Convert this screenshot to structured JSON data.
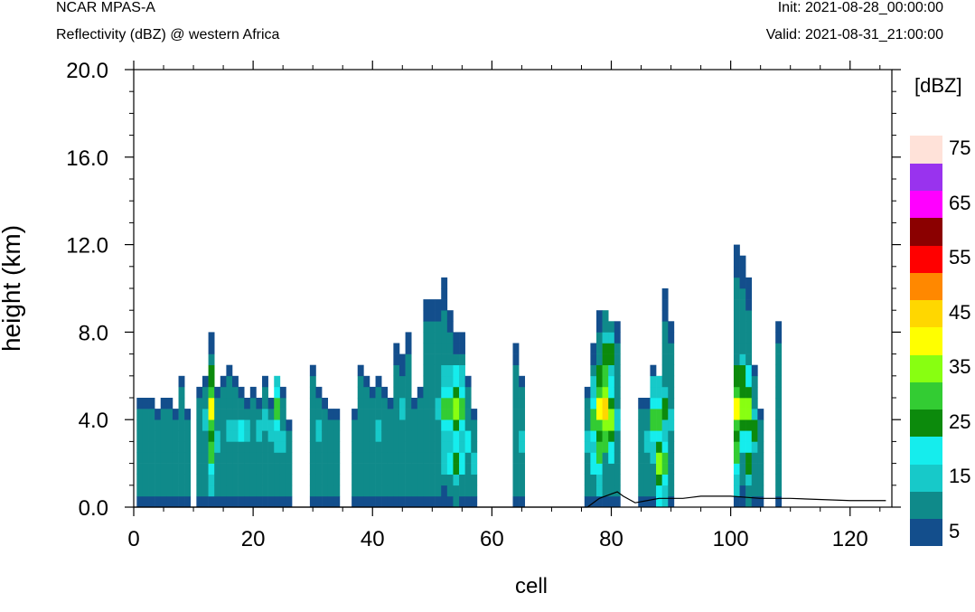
{
  "header": {
    "model": "NCAR MPAS-A",
    "subtitle": "Reflectivity (dBZ) @ western Africa",
    "init": "Init: 2021-08-28_00:00:00",
    "valid": "Valid: 2021-08-31_21:00:00"
  },
  "chart_data": {
    "type": "heatmap",
    "title": "Reflectivity (dBZ) @ western Africa",
    "xlabel": "cell",
    "ylabel": "height (km)",
    "xlim": [
      0,
      127
    ],
    "ylim": [
      0,
      20
    ],
    "x_ticks": [
      0,
      20,
      40,
      60,
      80,
      100,
      120
    ],
    "y_ticks": [
      0,
      4,
      8,
      12,
      16,
      20
    ],
    "x_tick_labels": [
      "0",
      "20",
      "40",
      "60",
      "80",
      "100",
      "120"
    ],
    "y_tick_labels": [
      "0.0",
      "4.0",
      "8.0",
      "12.0",
      "16.0",
      "20.0"
    ],
    "colorbar": {
      "unit": "[dBZ]",
      "levels": [
        5,
        10,
        15,
        20,
        25,
        30,
        35,
        40,
        45,
        50,
        55,
        60,
        65,
        70,
        75
      ],
      "colors": [
        "#134e8c",
        "#0f8a8a",
        "#17c9c9",
        "#15eded",
        "#0c8a0c",
        "#33cc33",
        "#88ff11",
        "#ffff00",
        "#ffd700",
        "#ff8800",
        "#ff0000",
        "#8b0000",
        "#ff00ff",
        "#9933ee",
        "#ffe2d9"
      ],
      "tick_labels": [
        "5",
        "15",
        "25",
        "35",
        "45",
        "55",
        "65",
        "75"
      ]
    },
    "columns": [
      {
        "x": 1,
        "top": 5.0,
        "cores": []
      },
      {
        "x": 2,
        "top": 5.0,
        "cores": [
          {
            "z": 2.5,
            "dbz": 10
          }
        ]
      },
      {
        "x": 3,
        "top": 5.0,
        "cores": []
      },
      {
        "x": 4,
        "top": 4.5,
        "cores": []
      },
      {
        "x": 5,
        "top": 5.0,
        "cores": [
          {
            "z": 3,
            "dbz": 10
          }
        ]
      },
      {
        "x": 6,
        "top": 5.0,
        "cores": []
      },
      {
        "x": 7,
        "top": 4.5,
        "cores": [
          {
            "z": 3,
            "dbz": 10
          }
        ]
      },
      {
        "x": 8,
        "top": 6.0,
        "cores": []
      },
      {
        "x": 9,
        "top": 4.5,
        "cores": []
      },
      {
        "x": 11,
        "top": 5.5,
        "cores": [
          {
            "z": 3,
            "dbz": 10
          }
        ]
      },
      {
        "x": 12,
        "top": 6.0,
        "cores": [
          {
            "z": 4,
            "dbz": 15
          }
        ]
      },
      {
        "x": 13,
        "top": 8.0,
        "cores": [
          {
            "z": 4.5,
            "dbz": 40
          },
          {
            "z": 2.5,
            "dbz": 30
          }
        ]
      },
      {
        "x": 14,
        "top": 5.5,
        "cores": [
          {
            "z": 3,
            "dbz": 15
          }
        ]
      },
      {
        "x": 15,
        "top": 6.0,
        "cores": [
          {
            "z": 3,
            "dbz": 10
          }
        ]
      },
      {
        "x": 16,
        "top": 6.5,
        "cores": [
          {
            "z": 3.5,
            "dbz": 15
          }
        ]
      },
      {
        "x": 17,
        "top": 6.0,
        "cores": [
          {
            "z": 3.5,
            "dbz": 15
          }
        ]
      },
      {
        "x": 18,
        "top": 5.5,
        "cores": [
          {
            "z": 3.5,
            "dbz": 20
          }
        ]
      },
      {
        "x": 19,
        "top": 5.0,
        "cores": [
          {
            "z": 3.5,
            "dbz": 15
          }
        ]
      },
      {
        "x": 20,
        "top": 5.5,
        "cores": [
          {
            "z": 3,
            "dbz": 10
          }
        ]
      },
      {
        "x": 21,
        "top": 5.0,
        "cores": [
          {
            "z": 3.5,
            "dbz": 15
          }
        ]
      },
      {
        "x": 22,
        "top": 6.0,
        "cores": [
          {
            "z": 4,
            "dbz": 15
          }
        ]
      },
      {
        "x": 23,
        "top": 5.0,
        "cores": [
          {
            "z": 3.5,
            "dbz": 15
          }
        ]
      },
      {
        "x": 24,
        "top": 6.0,
        "cores": [
          {
            "z": 4.5,
            "dbz": 30
          }
        ]
      },
      {
        "x": 25,
        "top": 5.5,
        "cores": [
          {
            "z": 3,
            "dbz": 15
          }
        ]
      },
      {
        "x": 26,
        "top": 4.0,
        "cores": [
          {
            "z": 2.5,
            "dbz": 10
          }
        ]
      },
      {
        "x": 30,
        "top": 6.5,
        "cores": [
          {
            "z": 3,
            "dbz": 10
          }
        ]
      },
      {
        "x": 31,
        "top": 5.5,
        "cores": [
          {
            "z": 3.5,
            "dbz": 15
          }
        ]
      },
      {
        "x": 32,
        "top": 5.0,
        "cores": [
          {
            "z": 3,
            "dbz": 10
          }
        ]
      },
      {
        "x": 33,
        "top": 4.5,
        "cores": []
      },
      {
        "x": 34,
        "top": 4.5,
        "cores": []
      },
      {
        "x": 37,
        "top": 4.5,
        "cores": [
          {
            "z": 2.5,
            "dbz": 10
          }
        ]
      },
      {
        "x": 38,
        "top": 6.5,
        "cores": [
          {
            "z": 3.5,
            "dbz": 10
          }
        ]
      },
      {
        "x": 39,
        "top": 6.0,
        "cores": [
          {
            "z": 3.5,
            "dbz": 10
          }
        ]
      },
      {
        "x": 40,
        "top": 5.5,
        "cores": [
          {
            "z": 3.5,
            "dbz": 10
          }
        ]
      },
      {
        "x": 41,
        "top": 6.0,
        "cores": [
          {
            "z": 3.5,
            "dbz": 15
          }
        ]
      },
      {
        "x": 42,
        "top": 5.5,
        "cores": [
          {
            "z": 3.5,
            "dbz": 10
          }
        ]
      },
      {
        "x": 43,
        "top": 5.0,
        "cores": [
          {
            "z": 3,
            "dbz": 10
          }
        ]
      },
      {
        "x": 44,
        "top": 7.5,
        "cores": [
          {
            "z": 4,
            "dbz": 10
          }
        ]
      },
      {
        "x": 45,
        "top": 7.0,
        "cores": [
          {
            "z": 4.5,
            "dbz": 15
          }
        ]
      },
      {
        "x": 46,
        "top": 8.0,
        "cores": [
          {
            "z": 3.5,
            "dbz": 10
          }
        ]
      },
      {
        "x": 47,
        "top": 5.0,
        "cores": [
          {
            "z": 3,
            "dbz": 10
          }
        ]
      },
      {
        "x": 48,
        "top": 5.5,
        "cores": [
          {
            "z": 3,
            "dbz": 10
          }
        ]
      },
      {
        "x": 49,
        "top": 9.5,
        "cores": [
          {
            "z": 4,
            "dbz": 10
          }
        ]
      },
      {
        "x": 50,
        "top": 9.5,
        "cores": [
          {
            "z": 4,
            "dbz": 10
          }
        ]
      },
      {
        "x": 51,
        "top": 9.5,
        "cores": [
          {
            "z": 4.5,
            "dbz": 15
          }
        ]
      },
      {
        "x": 52,
        "top": 10.5,
        "cores": [
          {
            "z": 4.5,
            "dbz": 30
          },
          {
            "z": 2,
            "dbz": 15
          }
        ]
      },
      {
        "x": 53,
        "top": 9.0,
        "cores": [
          {
            "z": 4.5,
            "dbz": 30
          },
          {
            "z": 2,
            "dbz": 20
          }
        ]
      },
      {
        "x": 54,
        "top": 8.0,
        "cores": [
          {
            "z": 4.5,
            "dbz": 35
          },
          {
            "z": 2,
            "dbz": 25
          }
        ]
      },
      {
        "x": 55,
        "top": 8.0,
        "cores": [
          {
            "z": 4.5,
            "dbz": 30
          },
          {
            "z": 2,
            "dbz": 20
          }
        ]
      },
      {
        "x": 56,
        "top": 6.0,
        "cores": [
          {
            "z": 3,
            "dbz": 20
          }
        ]
      },
      {
        "x": 57,
        "top": 4.5,
        "cores": [
          {
            "z": 2,
            "dbz": 15
          }
        ]
      },
      {
        "x": 64,
        "top": 7.5,
        "cores": [
          {
            "z": 4.5,
            "dbz": 10
          }
        ]
      },
      {
        "x": 65,
        "top": 6.0,
        "cores": [
          {
            "z": 3,
            "dbz": 15
          }
        ]
      },
      {
        "x": 76,
        "top": 5.5,
        "cores": [
          {
            "z": 3,
            "dbz": 15
          }
        ]
      },
      {
        "x": 77,
        "top": 7.5,
        "cores": [
          {
            "z": 4,
            "dbz": 30
          },
          {
            "z": 2,
            "dbz": 20
          }
        ]
      },
      {
        "x": 78,
        "top": 9.0,
        "cores": [
          {
            "z": 4.5,
            "dbz": 40
          },
          {
            "z": 2.5,
            "dbz": 30
          }
        ]
      },
      {
        "x": 79,
        "top": 9.0,
        "cores": [
          {
            "z": 4.5,
            "dbz": 45
          },
          {
            "z": 7,
            "dbz": 25
          }
        ]
      },
      {
        "x": 80,
        "top": 8.5,
        "cores": [
          {
            "z": 4,
            "dbz": 35
          },
          {
            "z": 7,
            "dbz": 25
          }
        ]
      },
      {
        "x": 81,
        "top": 8.5,
        "cores": [
          {
            "z": 4,
            "dbz": 15
          }
        ]
      },
      {
        "x": 85,
        "top": 5.0,
        "cores": [
          {
            "z": 3,
            "dbz": 10
          }
        ]
      },
      {
        "x": 86,
        "top": 5.0,
        "cores": [
          {
            "z": 3,
            "dbz": 15
          }
        ]
      },
      {
        "x": 87,
        "top": 6.5,
        "cores": [
          {
            "z": 4,
            "dbz": 30
          }
        ]
      },
      {
        "x": 88,
        "top": 6.0,
        "cores": [
          {
            "z": 4,
            "dbz": 30
          },
          {
            "z": 2,
            "dbz": 35
          }
        ]
      },
      {
        "x": 89,
        "top": 10.0,
        "cores": [
          {
            "z": 4.5,
            "dbz": 25
          },
          {
            "z": 2,
            "dbz": 30
          }
        ]
      },
      {
        "x": 90,
        "top": 8.5,
        "cores": [
          {
            "z": 4,
            "dbz": 15
          }
        ]
      },
      {
        "x": 101,
        "top": 12.0,
        "cores": [
          {
            "z": 4.5,
            "dbz": 40
          },
          {
            "z": 2.5,
            "dbz": 30
          }
        ]
      },
      {
        "x": 102,
        "top": 11.5,
        "cores": [
          {
            "z": 4.5,
            "dbz": 35
          },
          {
            "z": 6,
            "dbz": 25
          }
        ]
      },
      {
        "x": 103,
        "top": 10.5,
        "cores": [
          {
            "z": 4.5,
            "dbz": 35
          },
          {
            "z": 2,
            "dbz": 25
          }
        ]
      },
      {
        "x": 104,
        "top": 6.5,
        "cores": [
          {
            "z": 3.5,
            "dbz": 25
          }
        ]
      },
      {
        "x": 105,
        "top": 4.5,
        "cores": [
          {
            "z": 2.5,
            "dbz": 10
          }
        ]
      },
      {
        "x": 108,
        "top": 8.5,
        "cores": [
          {
            "z": 7,
            "dbz": 10
          }
        ]
      }
    ],
    "terrain": [
      [
        0,
        0
      ],
      [
        76,
        0
      ],
      [
        78,
        0.4
      ],
      [
        80,
        0.6
      ],
      [
        81,
        0.7
      ],
      [
        82,
        0.5
      ],
      [
        84,
        0.2
      ],
      [
        86,
        0.3
      ],
      [
        88,
        0.4
      ],
      [
        90,
        0.4
      ],
      [
        92,
        0.4
      ],
      [
        95,
        0.5
      ],
      [
        100,
        0.5
      ],
      [
        105,
        0.4
      ],
      [
        110,
        0.4
      ],
      [
        120,
        0.3
      ],
      [
        126,
        0.3
      ]
    ]
  }
}
